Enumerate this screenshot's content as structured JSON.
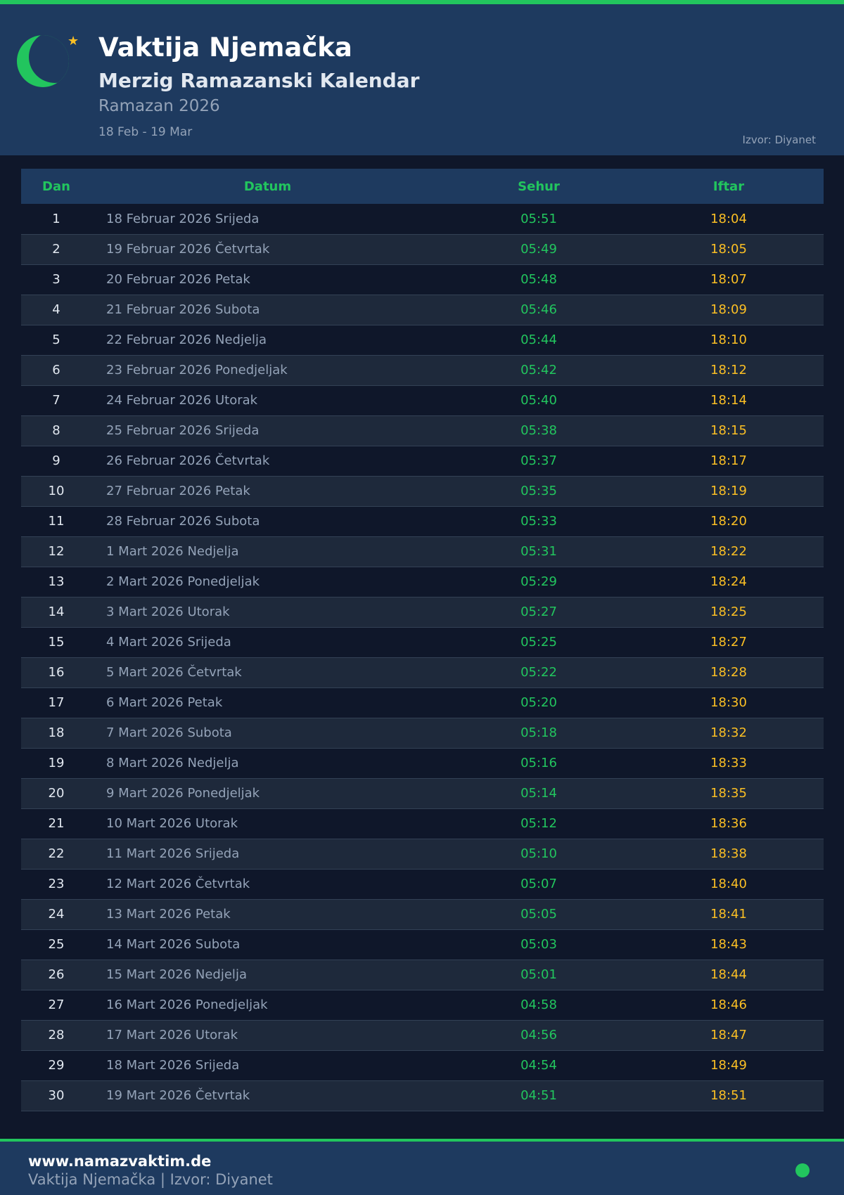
{
  "header": {
    "title": "Vaktija Njemačka",
    "subtitle": "Merzig Ramazanski Kalendar",
    "year": "Ramazan 2026",
    "range": "18 Feb - 19 Mar",
    "source": "Izvor: Diyanet",
    "icons": [
      "crescent-moon-icon",
      "star-icon"
    ]
  },
  "table": {
    "columns": [
      "Dan",
      "Datum",
      "Sehur",
      "Iftar"
    ],
    "rows": [
      [
        "1",
        "18 Februar 2026 Srijeda",
        "05:51",
        "18:04"
      ],
      [
        "2",
        "19 Februar 2026 Četvrtak",
        "05:49",
        "18:05"
      ],
      [
        "3",
        "20 Februar 2026 Petak",
        "05:48",
        "18:07"
      ],
      [
        "4",
        "21 Februar 2026 Subota",
        "05:46",
        "18:09"
      ],
      [
        "5",
        "22 Februar 2026 Nedjelja",
        "05:44",
        "18:10"
      ],
      [
        "6",
        "23 Februar 2026 Ponedjeljak",
        "05:42",
        "18:12"
      ],
      [
        "7",
        "24 Februar 2026 Utorak",
        "05:40",
        "18:14"
      ],
      [
        "8",
        "25 Februar 2026 Srijeda",
        "05:38",
        "18:15"
      ],
      [
        "9",
        "26 Februar 2026 Četvrtak",
        "05:37",
        "18:17"
      ],
      [
        "10",
        "27 Februar 2026 Petak",
        "05:35",
        "18:19"
      ],
      [
        "11",
        "28 Februar 2026 Subota",
        "05:33",
        "18:20"
      ],
      [
        "12",
        "1 Mart 2026 Nedjelja",
        "05:31",
        "18:22"
      ],
      [
        "13",
        "2 Mart 2026 Ponedjeljak",
        "05:29",
        "18:24"
      ],
      [
        "14",
        "3 Mart 2026 Utorak",
        "05:27",
        "18:25"
      ],
      [
        "15",
        "4 Mart 2026 Srijeda",
        "05:25",
        "18:27"
      ],
      [
        "16",
        "5 Mart 2026 Četvrtak",
        "05:22",
        "18:28"
      ],
      [
        "17",
        "6 Mart 2026 Petak",
        "05:20",
        "18:30"
      ],
      [
        "18",
        "7 Mart 2026 Subota",
        "05:18",
        "18:32"
      ],
      [
        "19",
        "8 Mart 2026 Nedjelja",
        "05:16",
        "18:33"
      ],
      [
        "20",
        "9 Mart 2026 Ponedjeljak",
        "05:14",
        "18:35"
      ],
      [
        "21",
        "10 Mart 2026 Utorak",
        "05:12",
        "18:36"
      ],
      [
        "22",
        "11 Mart 2026 Srijeda",
        "05:10",
        "18:38"
      ],
      [
        "23",
        "12 Mart 2026 Četvrtak",
        "05:07",
        "18:40"
      ],
      [
        "24",
        "13 Mart 2026 Petak",
        "05:05",
        "18:41"
      ],
      [
        "25",
        "14 Mart 2026 Subota",
        "05:03",
        "18:43"
      ],
      [
        "26",
        "15 Mart 2026 Nedjelja",
        "05:01",
        "18:44"
      ],
      [
        "27",
        "16 Mart 2026 Ponedjeljak",
        "04:58",
        "18:46"
      ],
      [
        "28",
        "17 Mart 2026 Utorak",
        "04:56",
        "18:47"
      ],
      [
        "29",
        "18 Mart 2026 Srijeda",
        "04:54",
        "18:49"
      ],
      [
        "30",
        "19 Mart 2026 Četvrtak",
        "04:51",
        "18:51"
      ]
    ]
  },
  "footer": {
    "website": "www.namazvaktim.de",
    "tagline": "Vaktija Njemačka | Izvor: Diyanet"
  },
  "colors": {
    "accent": "#22c55e",
    "iftar": "#fbbf24",
    "header_bg": "#1e3a5f",
    "page_bg": "#0f172a"
  }
}
